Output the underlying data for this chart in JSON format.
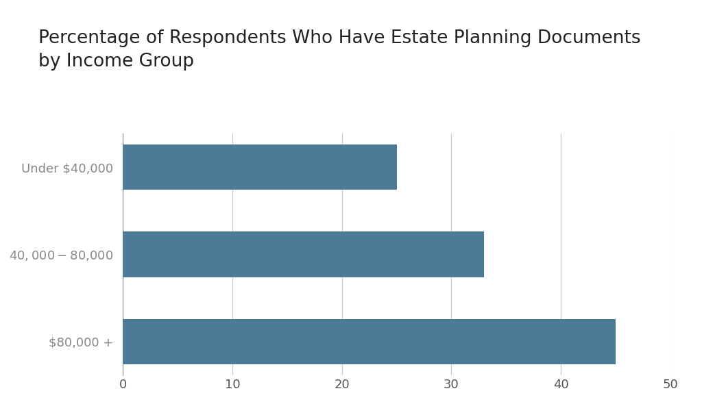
{
  "title_line1": "Percentage of Respondents Who Have Estate Planning Documents",
  "title_line2": "by Income Group",
  "categories": [
    "Under $40,000",
    "$40,000-$80,000",
    "$80,000 +"
  ],
  "values": [
    25,
    33,
    45
  ],
  "bar_color": "#4d7a96",
  "xlim": [
    0,
    50
  ],
  "xticks": [
    0,
    10,
    20,
    30,
    40,
    50
  ],
  "grid_color": "#c8c8c8",
  "background_color": "#ffffff",
  "title_fontsize": 19,
  "tick_fontsize": 13,
  "label_fontsize": 13,
  "bar_height": 0.52
}
